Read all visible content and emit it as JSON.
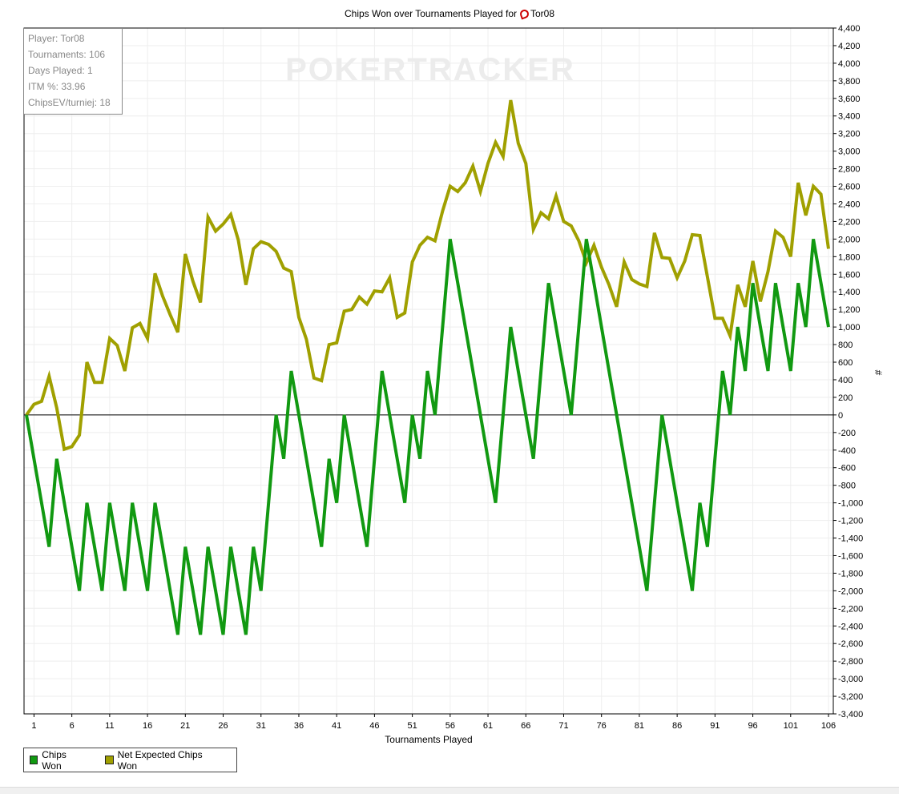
{
  "title": "Chips Won over Tournaments Played for",
  "title_player": "Tor08",
  "stats": {
    "player": "Player: Tor08",
    "tournaments": "Tournaments: 106",
    "days_played": "Days Played: 1",
    "itm": "ITM %: 33.96",
    "chips_ev": "ChipsEV/turniej: 18"
  },
  "watermark": "POKERTRACKER",
  "chart_data": {
    "type": "line",
    "xlabel": "Tournaments Played",
    "ylabel": "#",
    "xlim": [
      0,
      106
    ],
    "ylim": [
      -3400,
      4400
    ],
    "y_tick_step": 200,
    "x_ticks": [
      1,
      6,
      11,
      16,
      21,
      26,
      31,
      36,
      41,
      46,
      51,
      56,
      61,
      66,
      71,
      76,
      81,
      86,
      91,
      96,
      101,
      106
    ],
    "grid": true,
    "legend_position": "bottom-left",
    "x": [
      0,
      1,
      2,
      3,
      4,
      5,
      6,
      7,
      8,
      9,
      10,
      11,
      12,
      13,
      14,
      15,
      16,
      17,
      18,
      19,
      20,
      21,
      22,
      23,
      24,
      25,
      26,
      27,
      28,
      29,
      30,
      31,
      32,
      33,
      34,
      35,
      36,
      37,
      38,
      39,
      40,
      41,
      42,
      43,
      44,
      45,
      46,
      47,
      48,
      49,
      50,
      51,
      52,
      53,
      54,
      55,
      56,
      57,
      58,
      59,
      60,
      61,
      62,
      63,
      64,
      65,
      66,
      67,
      68,
      69,
      70,
      71,
      72,
      73,
      74,
      75,
      76,
      77,
      78,
      79,
      80,
      81,
      82,
      83,
      84,
      85,
      86,
      87,
      88,
      89,
      90,
      91,
      92,
      93,
      94,
      95,
      96,
      97,
      98,
      99,
      100,
      101,
      102,
      103,
      104,
      105,
      106
    ],
    "series": [
      {
        "name": "Chips Won",
        "color": "#119911",
        "values": [
          0,
          -500,
          -1000,
          -1500,
          -500,
          -1000,
          -1500,
          -2000,
          -1000,
          -1500,
          -2000,
          -1000,
          -1500,
          -2000,
          -1000,
          -1500,
          -2000,
          -1000,
          -1500,
          -2000,
          -2500,
          -1500,
          -2000,
          -2500,
          -1500,
          -2000,
          -2500,
          -1500,
          -2000,
          -2500,
          -1500,
          -2000,
          -1000,
          0,
          -500,
          500,
          0,
          -500,
          -1000,
          -1500,
          -500,
          -1000,
          0,
          -500,
          -1000,
          -1500,
          -500,
          500,
          0,
          -500,
          -1000,
          0,
          -500,
          500,
          0,
          1000,
          2000,
          1500,
          1000,
          500,
          0,
          -500,
          -1000,
          0,
          1000,
          500,
          0,
          -500,
          500,
          1500,
          1000,
          500,
          0,
          1000,
          2000,
          1500,
          1000,
          500,
          0,
          -500,
          -1000,
          -1500,
          -2000,
          -1000,
          0,
          -500,
          -1000,
          -1500,
          -2000,
          -1000,
          -1500,
          -500,
          500,
          0,
          1000,
          500,
          1500,
          1000,
          500,
          1500,
          1000,
          500,
          1500,
          1000,
          2000,
          1500,
          1000
        ]
      },
      {
        "name": "Net Expected Chips Won",
        "color": "#a0a000",
        "values": [
          0,
          120,
          155,
          440,
          80,
          -390,
          -360,
          -230,
          600,
          370,
          370,
          870,
          790,
          500,
          990,
          1040,
          870,
          1610,
          1350,
          1140,
          940,
          1830,
          1520,
          1280,
          2250,
          2090,
          2170,
          2280,
          1990,
          1480,
          1890,
          1970,
          1940,
          1860,
          1670,
          1630,
          1110,
          860,
          420,
          390,
          800,
          820,
          1180,
          1200,
          1340,
          1260,
          1410,
          1400,
          1560,
          1110,
          1160,
          1740,
          1930,
          2020,
          1980,
          2320,
          2600,
          2540,
          2640,
          2830,
          2540,
          2860,
          3100,
          2940,
          3580,
          3090,
          2860,
          2110,
          2300,
          2230,
          2490,
          2200,
          2150,
          1980,
          1730,
          1930,
          1680,
          1480,
          1230,
          1740,
          1540,
          1490,
          1460,
          2070,
          1790,
          1780,
          1560,
          1750,
          2050,
          2040,
          1570,
          1100,
          1100,
          900,
          1480,
          1230,
          1750,
          1290,
          1630,
          2090,
          2020,
          1800,
          2640,
          2270,
          2600,
          2510,
          1890
        ]
      }
    ]
  }
}
